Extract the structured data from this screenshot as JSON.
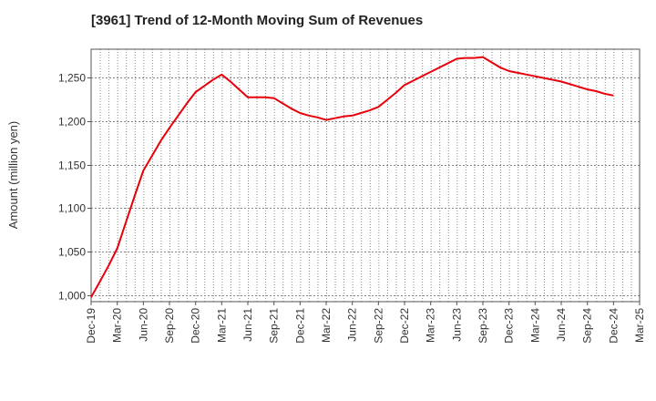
{
  "title": "[3961]  Trend of 12-Month Moving Sum of Revenues",
  "chart_data": {
    "type": "line",
    "title": "[3961]  Trend of 12-Month Moving Sum of Revenues",
    "xlabel": "",
    "ylabel": "Amount (million yen)",
    "ylim": [
      993,
      1282
    ],
    "yticks": [
      1000,
      1050,
      1100,
      1150,
      1200,
      1250
    ],
    "ytick_labels": [
      "1,000",
      "1,050",
      "1,100",
      "1,150",
      "1,200",
      "1,250"
    ],
    "x_tick_labels": [
      "Dec-19",
      "Mar-20",
      "Jun-20",
      "Sep-20",
      "Dec-20",
      "Mar-21",
      "Jun-21",
      "Sep-21",
      "Dec-21",
      "Mar-22",
      "Jun-22",
      "Sep-22",
      "Dec-22",
      "Mar-23",
      "Jun-23",
      "Sep-23",
      "Dec-23",
      "Mar-24",
      "Jun-24",
      "Sep-24",
      "Dec-24",
      "Mar-25"
    ],
    "grid": true,
    "legend": "none",
    "series": [
      {
        "color": "#e8000b",
        "x": [
          "2019-12",
          "2020-01",
          "2020-02",
          "2020-03",
          "2020-04",
          "2020-05",
          "2020-06",
          "2020-07",
          "2020-08",
          "2020-09",
          "2020-10",
          "2020-11",
          "2020-12",
          "2021-01",
          "2021-02",
          "2021-03",
          "2021-04",
          "2021-05",
          "2021-06",
          "2021-07",
          "2021-08",
          "2021-09",
          "2021-10",
          "2021-11",
          "2021-12",
          "2022-01",
          "2022-02",
          "2022-03",
          "2022-04",
          "2022-05",
          "2022-06",
          "2022-07",
          "2022-08",
          "2022-09",
          "2022-10",
          "2022-11",
          "2022-12",
          "2023-01",
          "2023-02",
          "2023-03",
          "2023-04",
          "2023-05",
          "2023-06",
          "2023-07",
          "2023-08",
          "2023-09",
          "2023-10",
          "2023-11",
          "2023-12",
          "2024-01",
          "2024-02",
          "2024-03",
          "2024-04",
          "2024-05",
          "2024-06",
          "2024-07",
          "2024-08",
          "2024-09",
          "2024-10",
          "2024-11",
          "2024-12"
        ],
        "values": [
          998,
          1016,
          1034,
          1054,
          1084,
          1114,
          1143,
          1160,
          1177,
          1192,
          1206,
          1220,
          1233,
          1240,
          1247,
          1253,
          1245,
          1236,
          1227,
          1227,
          1227,
          1226,
          1220,
          1214,
          1209,
          1206,
          1204,
          1201,
          1203,
          1205,
          1206,
          1209,
          1212,
          1216,
          1224,
          1232,
          1241,
          1246,
          1251,
          1256,
          1261,
          1266,
          1271,
          1272,
          1272,
          1273,
          1267,
          1261,
          1257,
          1255,
          1253,
          1251,
          1249,
          1247,
          1245,
          1242,
          1239,
          1236,
          1234,
          1231,
          1229
        ]
      }
    ]
  }
}
